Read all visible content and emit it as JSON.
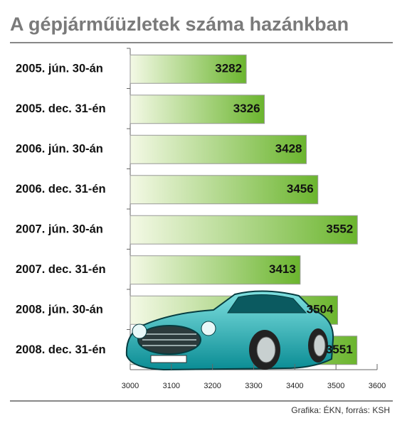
{
  "chart_data": {
    "type": "barh",
    "title": "A gépjárműüzletek száma hazánkban",
    "categories": [
      "2005. jún. 30-án",
      "2005. dec. 31-én",
      "2006. jún. 30-án",
      "2006. dec. 31-én",
      "2007. jún. 30-án",
      "2007. dec. 31-én",
      "2008. jún. 30-án",
      "2008. dec. 31-én"
    ],
    "values": [
      3282,
      3326,
      3428,
      3456,
      3552,
      3413,
      3504,
      3551
    ],
    "color": "#6bb52e",
    "xlim": [
      3000,
      3600
    ],
    "xticks": [
      3000,
      3100,
      3200,
      3300,
      3400,
      3500,
      3600
    ],
    "source": "Grafika: ÉKN, forrás: KSH"
  }
}
